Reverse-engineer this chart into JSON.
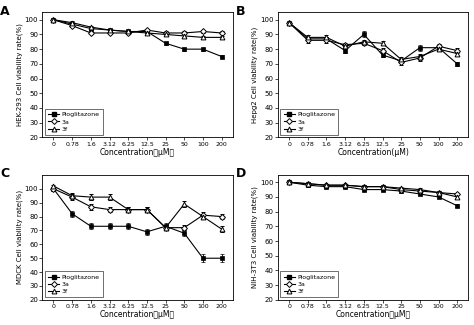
{
  "x_labels": [
    "0",
    "0.78",
    "1.6",
    "3.12",
    "6.25",
    "12.5",
    "25",
    "50",
    "100",
    "200"
  ],
  "panels": [
    {
      "label": "A",
      "ylabel": "HEK-293 Cell viability rate(%)",
      "xlabel": "Concentration（μM）",
      "Pioglitazone": [
        100,
        97,
        94,
        93,
        92,
        92,
        84,
        80,
        80,
        75
      ],
      "3a": [
        100,
        96,
        91,
        91,
        91,
        93,
        91,
        91,
        92,
        91
      ],
      "3f": [
        100,
        98,
        95,
        93,
        92,
        91,
        90,
        89,
        88,
        88
      ],
      "Pioglitazone_err": [
        0.5,
        1,
        1,
        1,
        1,
        1,
        1,
        1,
        1,
        1
      ],
      "3a_err": [
        0.5,
        1,
        1,
        1,
        1,
        1,
        1,
        1,
        1,
        1
      ],
      "3f_err": [
        0.5,
        1,
        1,
        1,
        1,
        1,
        1,
        1,
        1,
        1
      ],
      "ylim": [
        20,
        105
      ],
      "yticks": [
        20,
        30,
        40,
        50,
        60,
        70,
        80,
        90,
        100
      ]
    },
    {
      "label": "B",
      "ylabel": "Hepg2 Cell viability rate(%)",
      "xlabel": "Concentration(μM)",
      "Pioglitazone": [
        98,
        87,
        87,
        79,
        90,
        76,
        72,
        81,
        81,
        70
      ],
      "3a": [
        98,
        86,
        86,
        83,
        84,
        79,
        71,
        74,
        82,
        79
      ],
      "3f": [
        98,
        88,
        88,
        82,
        85,
        84,
        73,
        75,
        80,
        77
      ],
      "Pioglitazone_err": [
        0.5,
        1.5,
        1.5,
        1.5,
        2,
        1.5,
        1.5,
        2,
        2,
        1.5
      ],
      "3a_err": [
        0.5,
        1.5,
        1.5,
        1.5,
        1.5,
        1.5,
        1.5,
        2,
        1.5,
        1.5
      ],
      "3f_err": [
        0.5,
        1.5,
        1.5,
        1.5,
        1.5,
        1.5,
        1.5,
        1.5,
        1.5,
        1.5
      ],
      "ylim": [
        20,
        105
      ],
      "yticks": [
        20,
        30,
        40,
        50,
        60,
        70,
        80,
        90,
        100
      ]
    },
    {
      "label": "C",
      "ylabel": "MDCK Cell viability rate(%)",
      "xlabel": "Concentration（μM）",
      "Pioglitazone": [
        100,
        82,
        73,
        73,
        73,
        69,
        73,
        68,
        50,
        50
      ],
      "3a": [
        100,
        94,
        87,
        85,
        85,
        85,
        72,
        72,
        81,
        80
      ],
      "3f": [
        102,
        95,
        94,
        94,
        85,
        85,
        72,
        89,
        80,
        71
      ],
      "Pioglitazone_err": [
        1,
        2,
        2,
        2,
        2,
        2,
        2,
        2,
        3,
        3
      ],
      "3a_err": [
        1,
        2,
        2,
        2,
        2,
        2,
        2,
        2,
        2,
        2
      ],
      "3f_err": [
        1,
        2,
        2,
        2,
        2,
        2,
        2,
        2,
        2,
        2
      ],
      "ylim": [
        20,
        110
      ],
      "yticks": [
        20,
        30,
        40,
        50,
        60,
        70,
        80,
        90,
        100
      ]
    },
    {
      "label": "D",
      "ylabel": "NIH-3T3 Cell viability rate(%)",
      "xlabel": "Concentration（μM）",
      "Pioglitazone": [
        100,
        98,
        97,
        97,
        95,
        95,
        94,
        92,
        90,
        84
      ],
      "3a": [
        100,
        99,
        98,
        98,
        97,
        97,
        95,
        94,
        93,
        92
      ],
      "3f": [
        100,
        99,
        98,
        98,
        97,
        97,
        96,
        95,
        93,
        90
      ],
      "Pioglitazone_err": [
        0.5,
        1,
        1,
        1,
        1,
        1,
        1,
        1,
        1,
        1
      ],
      "3a_err": [
        0.5,
        1,
        1,
        1,
        1,
        1,
        1,
        1,
        1,
        1
      ],
      "3f_err": [
        0.5,
        1,
        1,
        1,
        1,
        1,
        1,
        1,
        1,
        1
      ],
      "ylim": [
        20,
        105
      ],
      "yticks": [
        20,
        30,
        40,
        50,
        60,
        70,
        80,
        90,
        100
      ]
    }
  ],
  "legend_entries": [
    "Pioglitazone",
    "3a",
    "3f"
  ],
  "background_color": "#ffffff"
}
